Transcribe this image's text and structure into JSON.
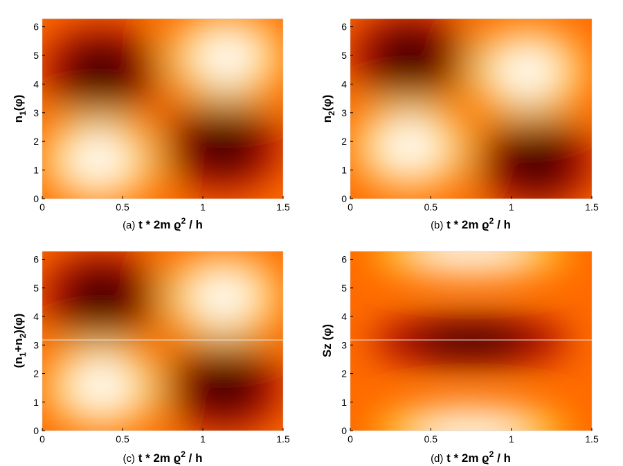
{
  "chart_data": [
    {
      "type": "heatmap",
      "panel_prefix": "(a)",
      "xlabel": "t * 2m ϱ",
      "xlabel_sup": "2",
      "xlabel_tail": " / h",
      "ylabel_main": "n",
      "ylabel_sub": "1",
      "ylabel_tail": "(φ)",
      "xlim": [
        0,
        1.5
      ],
      "ylim": [
        0,
        6.28
      ],
      "xticks": [
        "0",
        "0.5",
        "1",
        "1.5"
      ],
      "yticks": [
        "0",
        "1",
        "2",
        "3",
        "4",
        "5",
        "6"
      ],
      "colormap": "hot",
      "features": [
        {
          "kind": "max",
          "x": 0.35,
          "y": 1.35
        },
        {
          "kind": "max",
          "x": 1.15,
          "y": 4.95
        },
        {
          "kind": "min",
          "x": 0.37,
          "y": 4.45
        },
        {
          "kind": "min",
          "x": 1.12,
          "y": 1.85
        }
      ]
    },
    {
      "type": "heatmap",
      "panel_prefix": "(b)",
      "xlabel": "t * 2m ϱ",
      "xlabel_sup": "2",
      "xlabel_tail": " / h",
      "ylabel_main": "n",
      "ylabel_sub": "2",
      "ylabel_tail": "(φ)",
      "xlim": [
        0,
        1.5
      ],
      "ylim": [
        0,
        6.28
      ],
      "xticks": [
        "0",
        "0.5",
        "1",
        "1.5"
      ],
      "yticks": [
        "0",
        "1",
        "2",
        "3",
        "4",
        "5",
        "6"
      ],
      "colormap": "hot",
      "features": [
        {
          "kind": "max",
          "x": 0.37,
          "y": 1.8
        },
        {
          "kind": "max",
          "x": 1.1,
          "y": 4.45
        },
        {
          "kind": "min",
          "x": 0.37,
          "y": 4.95
        },
        {
          "kind": "min",
          "x": 1.15,
          "y": 1.3
        }
      ]
    },
    {
      "type": "heatmap",
      "panel_prefix": "(c)",
      "xlabel": "t * 2m  ϱ",
      "xlabel_sup": "2",
      "xlabel_tail": " / h",
      "ylabel_main": "(n",
      "ylabel_sub": "1",
      "ylabel_mid": "+n",
      "ylabel_sub2": "2",
      "ylabel_tail": ")(φ)",
      "xlim": [
        0,
        1.5
      ],
      "ylim": [
        0,
        6.28
      ],
      "xticks": [
        "0",
        "0.5",
        "1",
        "1.5"
      ],
      "yticks": [
        "0",
        "1",
        "2",
        "3",
        "4",
        "5",
        "6"
      ],
      "colormap": "hot",
      "features": [
        {
          "kind": "max",
          "x": 0.37,
          "y": 1.55
        },
        {
          "kind": "max",
          "x": 1.13,
          "y": 4.7
        },
        {
          "kind": "min",
          "x": 0.37,
          "y": 4.7
        },
        {
          "kind": "min",
          "x": 1.13,
          "y": 1.55
        }
      ]
    },
    {
      "type": "heatmap",
      "panel_prefix": "(d)",
      "xlabel": "t * 2m ϱ",
      "xlabel_sup": "2",
      "xlabel_tail": " / h",
      "ylabel_main": "Sz (φ)",
      "xlim": [
        0,
        1.5
      ],
      "ylim": [
        0,
        6.28
      ],
      "xticks": [
        "0",
        "0.5",
        "1",
        "1.5"
      ],
      "yticks": [
        "0",
        "1",
        "2",
        "3",
        "4",
        "5",
        "6"
      ],
      "colormap": "hot",
      "features": [
        {
          "kind": "max",
          "x": 0.75,
          "y": 0.0
        },
        {
          "kind": "max",
          "x": 0.75,
          "y": 6.28
        },
        {
          "kind": "min",
          "x": 0.75,
          "y": 3.14
        }
      ]
    }
  ]
}
